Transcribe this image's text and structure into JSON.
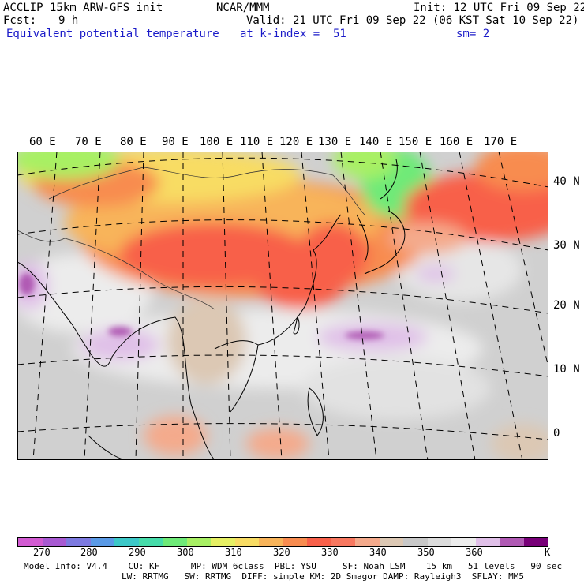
{
  "header": {
    "model": "ACCLIP 15km ARW-GFS init",
    "org": "NCAR/MMM",
    "init": "Init: 12 UTC Fri 09 Sep 22",
    "fcst_label": "Fcst:",
    "fcst_value": "9 h",
    "valid": "Valid: 21 UTC Fri 09 Sep 22 (06 KST Sat 10 Sep 22)",
    "field": "Equivalent potential temperature",
    "level": "at k-index =  51",
    "smooth": "sm= 2"
  },
  "map": {
    "lon_labels": [
      "60 E",
      "70 E",
      "80 E",
      "90 E",
      "100 E",
      "110 E",
      "120 E",
      "130 E",
      "140 E",
      "150 E",
      "160 E",
      "170 E"
    ],
    "lat_labels": [
      "40 N",
      "30 N",
      "20 N",
      "10 N",
      "0"
    ]
  },
  "colorbar": {
    "colors": [
      "#d25bd2",
      "#a85ad2",
      "#7d7ae0",
      "#5a9ae6",
      "#3cc8c8",
      "#46dcaa",
      "#6eea78",
      "#a8f064",
      "#e6f064",
      "#f8dc64",
      "#f8b45a",
      "#f88c50",
      "#f8604a",
      "#f87860",
      "#f4aa8c",
      "#dcc8b4",
      "#c8c8c8",
      "#dcdcdc",
      "#ececec",
      "#e0c0e8",
      "#b05ab4",
      "#780078"
    ],
    "tick_labels": [
      "270",
      "280",
      "290",
      "300",
      "310",
      "320",
      "330",
      "340",
      "350",
      "360",
      "K"
    ]
  },
  "footer": {
    "line1": "Model Info: V4.4    CU: KF      MP: WDM 6class  PBL: YSU     SF: Noah LSM    15 km   51 levels   90 sec",
    "line2": "LW: RRTMG   SW: RRTMG  DIFF: simple KM: 2D Smagor DAMP: Rayleigh3  SFLAY: MM5"
  }
}
